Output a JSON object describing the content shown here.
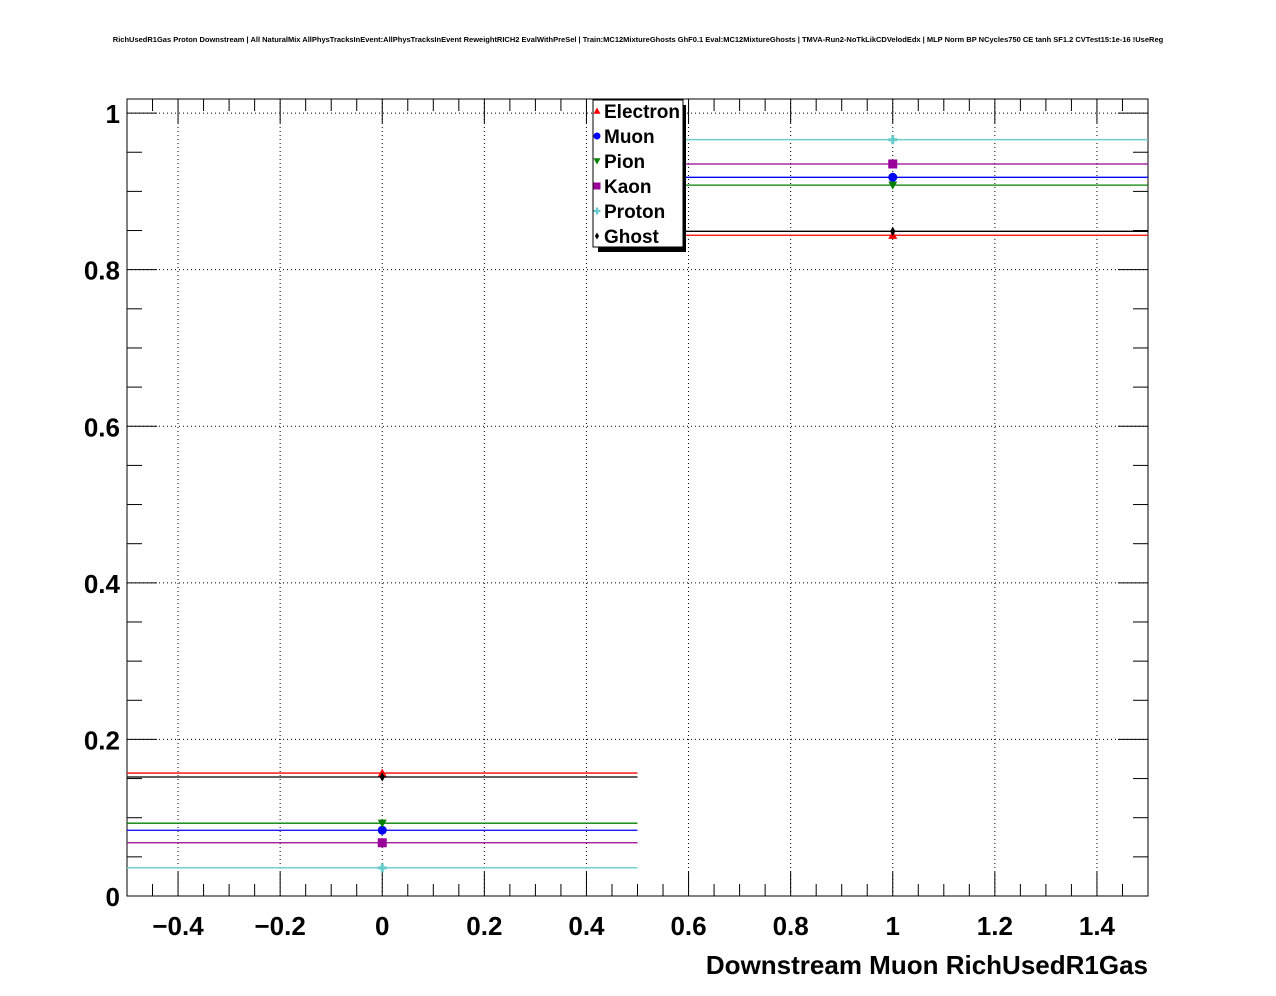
{
  "chart_data": {
    "type": "scatter",
    "title": "RichUsedR1Gas Proton Downstream | All NaturalMix AllPhysTracksInEvent:AllPhysTracksInEvent ReweightRICH2 EvalWithPreSel | Train:MC12MixtureGhosts GhF0.1 Eval:MC12MixtureGhosts | TMVA-Run2-NoTkLikCDVelodEdx | MLP Norm BP NCycles750 CE tanh SF1.2 CVTest15:1e-16 !UseReg",
    "xlabel": "Downstream Muon RichUsedR1Gas",
    "ylabel": "",
    "xlim": [
      -0.5,
      1.5
    ],
    "ylim": [
      0,
      1.018
    ],
    "xticks": [
      "-0.4",
      "-0.2",
      "0",
      "0.2",
      "0.4",
      "0.6",
      "0.8",
      "1",
      "1.2",
      "1.4"
    ],
    "xtick_values": [
      -0.4,
      -0.2,
      0,
      0.2,
      0.4,
      0.6,
      0.8,
      1,
      1.2,
      1.4
    ],
    "yticks": [
      "0",
      "0.2",
      "0.4",
      "0.6",
      "0.8",
      "1"
    ],
    "ytick_values": [
      0,
      0.2,
      0.4,
      0.6,
      0.8,
      1
    ],
    "grid": true,
    "legend_position": "top-center",
    "x": [
      0,
      1
    ],
    "x_error": 0.5,
    "series": [
      {
        "name": "Electron",
        "color": "#ff0000",
        "marker": "triangle-up",
        "values": [
          0.157,
          0.844
        ]
      },
      {
        "name": "Muon",
        "color": "#0000ff",
        "marker": "circle",
        "values": [
          0.084,
          0.918
        ]
      },
      {
        "name": "Pion",
        "color": "#008000",
        "marker": "triangle-down",
        "values": [
          0.093,
          0.908
        ]
      },
      {
        "name": "Kaon",
        "color": "#990099",
        "marker": "square",
        "values": [
          0.068,
          0.935
        ]
      },
      {
        "name": "Proton",
        "color": "#66cccc",
        "marker": "cross",
        "values": [
          0.036,
          0.966
        ]
      },
      {
        "name": "Ghost",
        "color": "#000000",
        "marker": "diamond",
        "values": [
          0.152,
          0.849
        ]
      }
    ]
  }
}
